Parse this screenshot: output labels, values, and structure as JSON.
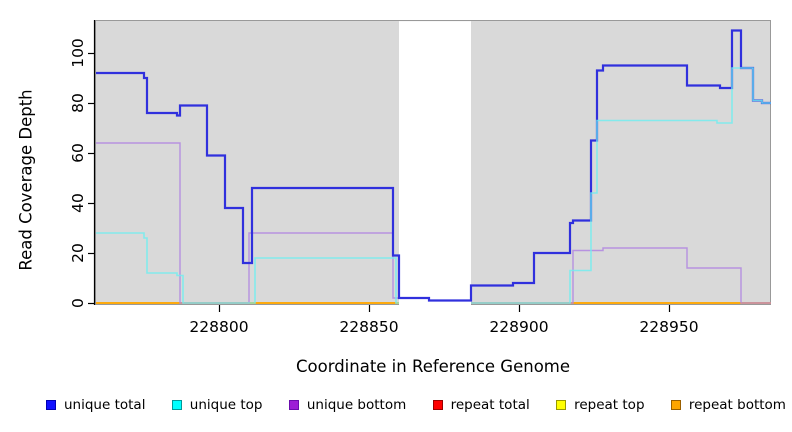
{
  "figure_title": "",
  "chart_data": {
    "type": "line",
    "step": "post",
    "title": "",
    "xlabel": "Coordinate in Reference Genome",
    "ylabel": "Read Coverage Depth",
    "x_ticks": [
      228800,
      228850,
      228900,
      228950
    ],
    "y_ticks": [
      0,
      20,
      40,
      60,
      80,
      100
    ],
    "xlim": [
      228759,
      228984
    ],
    "ylim": [
      0,
      113
    ],
    "grid": false,
    "plot_background": "#d9d9d9",
    "box_border_color": "#999999",
    "gap_region": {
      "x_start": 228860,
      "x_end": 228884,
      "color": "#ffffff"
    },
    "legend_position": "bottom",
    "series": [
      {
        "name": "unique total",
        "color": "#3030dd",
        "legend_color": "#1010ff",
        "legend_border": "#0000b3",
        "line_width": 2.2,
        "opacity": 1,
        "segments": [
          [
            [
              228759,
              92
            ],
            [
              228775,
              90
            ],
            [
              228776,
              76
            ],
            [
              228786,
              75
            ],
            [
              228787,
              79
            ],
            [
              228796,
              59
            ],
            [
              228802,
              38
            ],
            [
              228808,
              16
            ],
            [
              228811,
              46
            ],
            [
              228858,
              19
            ],
            [
              228860,
              2
            ],
            [
              228870,
              1
            ],
            [
              228884,
              7
            ],
            [
              228898,
              8
            ],
            [
              228905,
              20
            ],
            [
              228917,
              32
            ],
            [
              228918,
              33
            ],
            [
              228924,
              65
            ],
            [
              228926,
              93
            ],
            [
              228928,
              95
            ],
            [
              228956,
              87
            ],
            [
              228967,
              86
            ],
            [
              228971,
              109
            ],
            [
              228974,
              94
            ],
            [
              228978,
              81
            ],
            [
              228981,
              80
            ],
            [
              228984,
              80
            ]
          ]
        ]
      },
      {
        "name": "unique top",
        "color": "#70eef0",
        "legend_color": "#00ffff",
        "legend_border": "#009999",
        "line_width": 1.6,
        "opacity": 0.82,
        "segments": [
          [
            [
              228759,
              28
            ],
            [
              228775,
              26
            ],
            [
              228776,
              12
            ],
            [
              228786,
              11
            ],
            [
              228788,
              0
            ],
            [
              228812,
              18
            ],
            [
              228859,
              0
            ],
            [
              228860,
              0
            ]
          ],
          [
            [
              228884,
              0
            ],
            [
              228917,
              13
            ],
            [
              228924,
              44
            ],
            [
              228926,
              73
            ],
            [
              228966,
              72
            ],
            [
              228971,
              94
            ],
            [
              228978,
              81
            ],
            [
              228981,
              80
            ],
            [
              228984,
              80
            ]
          ]
        ]
      },
      {
        "name": "unique bottom",
        "color": "#b287e0",
        "legend_color": "#9d1ed6",
        "legend_border": "#6a0dad",
        "line_width": 1.4,
        "opacity": 0.88,
        "segments": [
          [
            [
              228759,
              64
            ],
            [
              228787,
              0
            ],
            [
              228810,
              28
            ],
            [
              228858,
              2
            ],
            [
              228860,
              2
            ]
          ],
          [
            [
              228884,
              0
            ],
            [
              228918,
              21
            ],
            [
              228928,
              22
            ],
            [
              228956,
              14
            ],
            [
              228974,
              0
            ],
            [
              228984,
              0
            ]
          ]
        ]
      },
      {
        "name": "repeat total",
        "color": "#ff0000",
        "legend_color": "#ff0000",
        "legend_border": "#990000",
        "line_width": 1.4,
        "opacity": 1,
        "segments": [
          [
            [
              228759,
              0
            ],
            [
              228860,
              0
            ]
          ],
          [
            [
              228884,
              0
            ],
            [
              228984,
              0
            ]
          ]
        ]
      },
      {
        "name": "repeat top",
        "color": "#ffff00",
        "legend_color": "#ffff00",
        "legend_border": "#999900",
        "line_width": 1.4,
        "opacity": 1,
        "segments": [
          [
            [
              228759,
              0
            ],
            [
              228860,
              0
            ]
          ],
          [
            [
              228884,
              0
            ],
            [
              228984,
              0
            ]
          ]
        ]
      },
      {
        "name": "repeat bottom",
        "color": "#ffa500",
        "legend_color": "#ffa500",
        "legend_border": "#995e00",
        "line_width": 1.5,
        "opacity": 1,
        "segments": [
          [
            [
              228759,
              0
            ],
            [
              228860,
              0
            ]
          ],
          [
            [
              228884,
              0
            ],
            [
              228984,
              0
            ]
          ]
        ]
      }
    ],
    "draw_order": [
      3,
      4,
      5,
      2,
      0,
      1
    ]
  }
}
